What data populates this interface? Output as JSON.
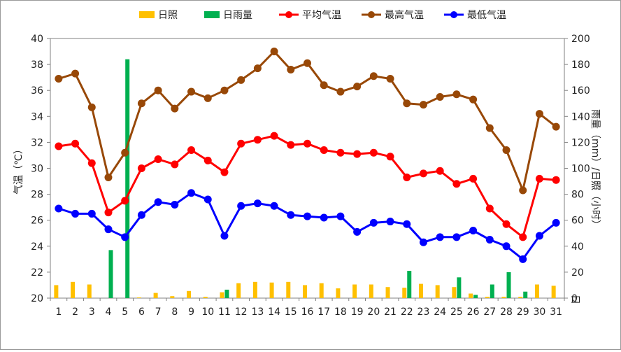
{
  "chart_data": {
    "type": "bar+line",
    "days": [
      1,
      2,
      3,
      4,
      5,
      6,
      7,
      8,
      9,
      10,
      11,
      12,
      13,
      14,
      15,
      16,
      17,
      18,
      19,
      20,
      21,
      22,
      23,
      24,
      25,
      26,
      27,
      28,
      29,
      30,
      31
    ],
    "x_unit_label": "日",
    "left_axis": {
      "label": "气温（℃）",
      "min": 20,
      "max": 40,
      "step": 2
    },
    "right_axis": {
      "label": "雨量（mm）/日照（小时）",
      "min": 0,
      "max": 200,
      "step": 20
    },
    "legend": [
      {
        "name": "日照",
        "kind": "bar",
        "color": "#FFC000"
      },
      {
        "name": "日雨量",
        "kind": "bar",
        "color": "#00B050"
      },
      {
        "name": "平均气温",
        "kind": "line",
        "color": "#FF0000"
      },
      {
        "name": "最高气温",
        "kind": "line",
        "color": "#984807"
      },
      {
        "name": "最低气温",
        "kind": "line",
        "color": "#0000FF"
      }
    ],
    "bar_series": [
      {
        "name": "日照",
        "axis": "right",
        "color": "#FFC000",
        "values": [
          10,
          12.5,
          10.5,
          0,
          0,
          0.5,
          4,
          1.5,
          5.5,
          1,
          4.5,
          11.5,
          12.5,
          12,
          12.5,
          10,
          11.5,
          7.5,
          10.5,
          10.5,
          8.5,
          8,
          11,
          10,
          8.5,
          3.5,
          1,
          1,
          1,
          10.5,
          9.5
        ]
      },
      {
        "name": "日雨量",
        "axis": "right",
        "color": "#00B050",
        "values": [
          0,
          0,
          0,
          37,
          184,
          0,
          0,
          0,
          0,
          0,
          6.5,
          0,
          0,
          0,
          0,
          0,
          0,
          0,
          0,
          0,
          0,
          21,
          0,
          0,
          16,
          2.5,
          10.5,
          20,
          5,
          0,
          0
        ]
      }
    ],
    "line_series": [
      {
        "name": "平均气温",
        "axis": "left",
        "color": "#FF0000",
        "values": [
          31.7,
          31.9,
          30.4,
          26.6,
          27.5,
          30.0,
          30.7,
          30.3,
          31.4,
          30.6,
          29.7,
          31.9,
          32.2,
          32.5,
          31.8,
          31.9,
          31.4,
          31.2,
          31.1,
          31.2,
          30.9,
          29.3,
          29.6,
          29.8,
          28.8,
          29.2,
          26.9,
          25.7,
          24.7,
          29.2,
          29.1
        ]
      },
      {
        "name": "最高气温",
        "axis": "left",
        "color": "#984807",
        "values": [
          36.9,
          37.3,
          34.7,
          29.3,
          31.2,
          35.0,
          36.0,
          34.6,
          35.9,
          35.4,
          36.0,
          36.8,
          37.7,
          39.0,
          37.6,
          38.1,
          36.4,
          35.9,
          36.3,
          37.1,
          36.9,
          35.0,
          34.9,
          35.5,
          35.7,
          35.3,
          33.1,
          31.4,
          28.3,
          34.2,
          33.2
        ]
      },
      {
        "name": "最低气温",
        "axis": "left",
        "color": "#0000FF",
        "values": [
          26.9,
          26.5,
          26.5,
          25.3,
          24.7,
          26.4,
          27.4,
          27.2,
          28.1,
          27.6,
          24.8,
          27.1,
          27.3,
          27.1,
          26.4,
          26.3,
          26.2,
          26.3,
          25.1,
          25.8,
          25.9,
          25.7,
          24.3,
          24.7,
          24.7,
          25.2,
          24.5,
          24.0,
          23.0,
          24.8,
          25.8
        ]
      }
    ]
  }
}
